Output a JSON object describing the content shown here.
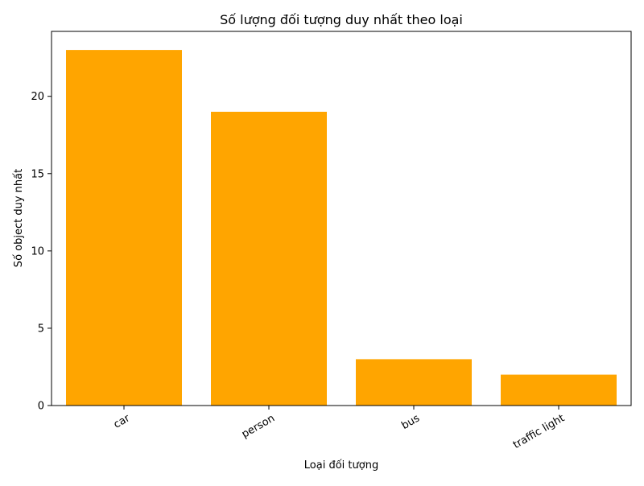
{
  "chart_data": {
    "type": "bar",
    "title": "Số lượng đối tượng duy nhất theo loại",
    "xlabel": "Loại đối tượng",
    "ylabel": "Số object duy nhất",
    "categories": [
      "car",
      "person",
      "bus",
      "traffic light"
    ],
    "values": [
      23,
      19,
      3,
      2
    ],
    "ylim": [
      0,
      24.2
    ],
    "yticks": [
      0,
      5,
      10,
      15,
      20
    ],
    "bar_color": "#ffa500",
    "grid": false,
    "legend": "none"
  }
}
